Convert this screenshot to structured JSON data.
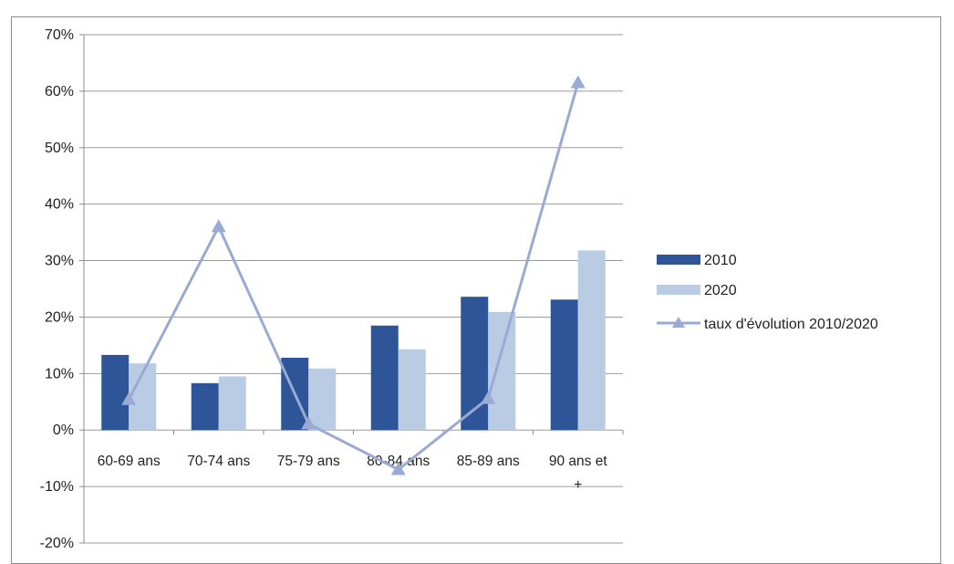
{
  "page_title": "",
  "colors": {
    "series_2010": "#2d5597",
    "series_2020": "#b9cce4",
    "series_taux": "#9aabd3",
    "grid": "#9b9b9b",
    "axis": "#8c8c8c"
  },
  "chart_data": {
    "type": "bar",
    "title": "",
    "xlabel": "",
    "ylabel": "",
    "ylim": [
      -20,
      70
    ],
    "yticks": [
      -20,
      -10,
      0,
      10,
      20,
      30,
      40,
      50,
      60,
      70
    ],
    "ytick_labels": [
      "-20%",
      "-10%",
      "0%",
      "10%",
      "20%",
      "30%",
      "40%",
      "50%",
      "60%",
      "70%"
    ],
    "categories": [
      "60-69 ans",
      "70-74 ans",
      "75-79 ans",
      "80-84 ans",
      "85-89 ans",
      "90 ans et +"
    ],
    "category_lines": [
      [
        "60-69 ans"
      ],
      [
        "70-74 ans"
      ],
      [
        "75-79 ans"
      ],
      [
        "80-84 ans"
      ],
      [
        "85-89 ans"
      ],
      [
        "90 ans et",
        "+"
      ]
    ],
    "grid": true,
    "legend_position": "right",
    "series": [
      {
        "name": "2010",
        "type": "bar",
        "values": [
          13.3,
          8.3,
          12.8,
          18.5,
          23.6,
          23.1
        ]
      },
      {
        "name": "2020",
        "type": "bar",
        "values": [
          11.8,
          9.5,
          10.9,
          14.3,
          20.9,
          31.8
        ]
      },
      {
        "name": "taux d'évolution 2010/2020",
        "type": "line",
        "marker": "triangle",
        "values": [
          5.4,
          36.0,
          1.1,
          -7.0,
          5.6,
          61.5
        ]
      }
    ]
  }
}
